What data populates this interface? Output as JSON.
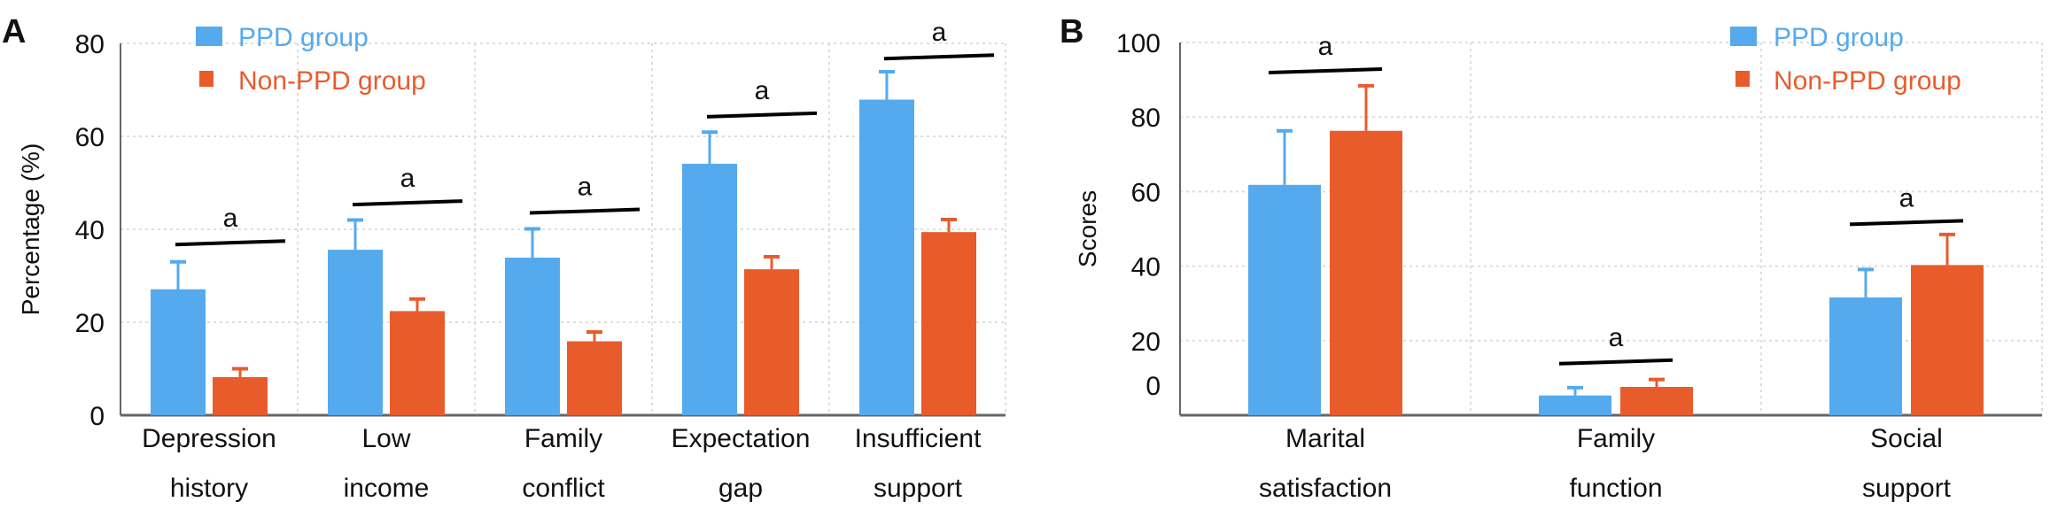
{
  "colors": {
    "ppd": "#55aaee",
    "non_ppd": "#e85c2c",
    "sig_line": "#000000",
    "grid": "#dddddd",
    "axis": "#666666"
  },
  "chart_data": [
    {
      "panel_label": "A",
      "type": "bar",
      "ylabel": "Percentage (%)",
      "xlabel": "",
      "ylim": [
        0,
        80
      ],
      "yticks": [
        0,
        20,
        40,
        60,
        80
      ],
      "grid": true,
      "legend_position": "top-left",
      "categories": [
        [
          "Depression",
          "history"
        ],
        [
          "Low",
          "income"
        ],
        [
          "Family",
          "conflict"
        ],
        [
          "Expectation",
          "gap"
        ],
        [
          "Insufficient",
          "support"
        ]
      ],
      "series": [
        {
          "name": "PPD group",
          "color_key": "ppd",
          "values": [
            27.1,
            35.6,
            33.9,
            54.1,
            67.9
          ],
          "error_upper": [
            33.0,
            42.0,
            40.1,
            60.9,
            73.9
          ]
        },
        {
          "name": "Non-PPD group",
          "color_key": "non_ppd",
          "values": [
            8.2,
            22.4,
            15.9,
            31.4,
            39.4
          ],
          "error_upper": [
            10.0,
            25.0,
            17.9,
            34.1,
            42.1
          ]
        }
      ],
      "significance": [
        {
          "label": "a",
          "level": 37.1
        },
        {
          "label": "a",
          "level": 45.7
        },
        {
          "label": "a",
          "level": 43.9
        },
        {
          "label": "a",
          "level": 64.6
        },
        {
          "label": "a",
          "level": 77.1
        }
      ]
    },
    {
      "panel_label": "B",
      "type": "bar",
      "ylabel": "Scores",
      "xlabel": "",
      "ylim": [
        0,
        100
      ],
      "yticks": [
        0,
        20,
        40,
        60,
        80,
        100
      ],
      "grid": true,
      "legend_position": "top-right",
      "categories": [
        [
          "Marital",
          "satisfaction"
        ],
        [
          "Family",
          "function"
        ],
        [
          "Social",
          "support"
        ]
      ],
      "series": [
        {
          "name": "PPD group",
          "color_key": "ppd",
          "values": [
            61.8,
            5.3,
            31.6
          ],
          "error_upper": [
            76.3,
            7.4,
            39.1
          ]
        },
        {
          "name": "Non-PPD group",
          "color_key": "non_ppd",
          "values": [
            76.3,
            7.6,
            40.3
          ],
          "error_upper": [
            88.4,
            9.6,
            48.5
          ]
        }
      ],
      "significance": [
        {
          "label": "a",
          "level": 92.4
        },
        {
          "label": "a",
          "level": 14.3
        },
        {
          "label": "a",
          "level": 51.7
        }
      ]
    }
  ]
}
